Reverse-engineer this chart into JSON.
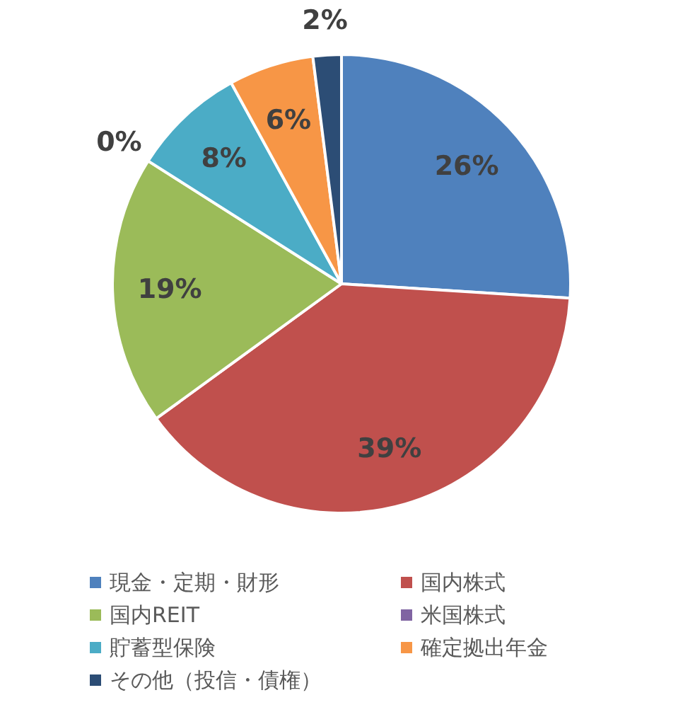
{
  "chart_data": {
    "type": "pie",
    "categories": [
      "現金・定期・財形",
      "国内株式",
      "国内REIT",
      "米国株式",
      "貯蓄型保険",
      "確定拠出年金",
      "その他（投信・債権）"
    ],
    "values": [
      26,
      39,
      19,
      0,
      8,
      6,
      2
    ],
    "colors": [
      "#4f81bd",
      "#c0504d",
      "#9bbb59",
      "#8064a2",
      "#4bacc6",
      "#f79646",
      "#2c4d75"
    ],
    "value_labels": [
      "26%",
      "39%",
      "19%",
      "0%",
      "8%",
      "6%",
      "2%"
    ],
    "legend": "bottom"
  }
}
